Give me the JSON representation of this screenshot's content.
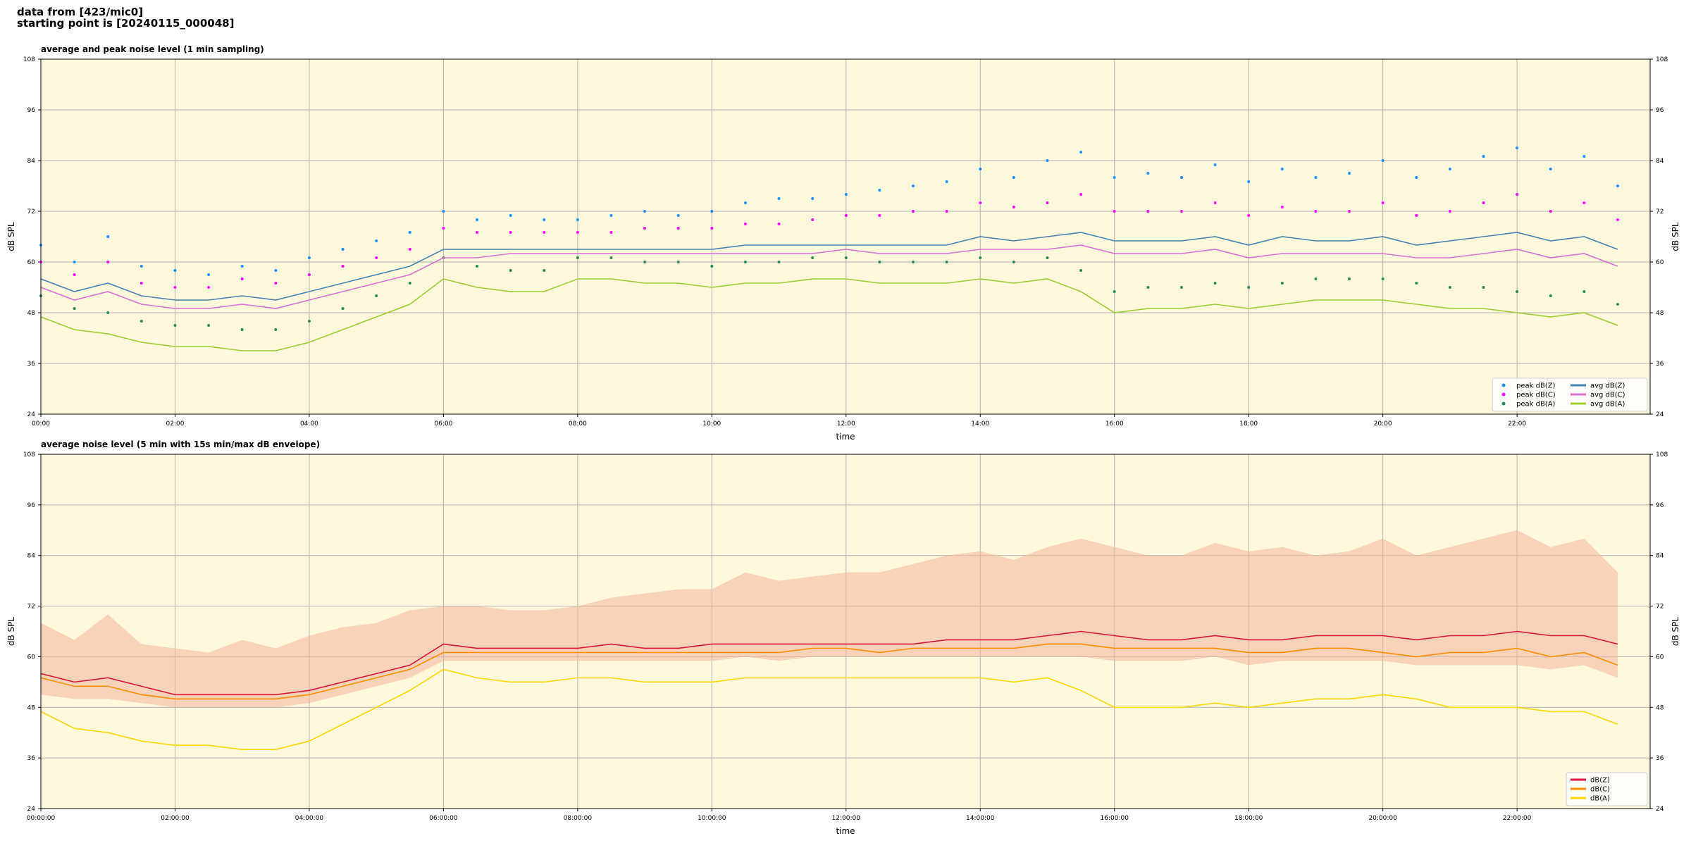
{
  "header": [
    "data from [423/mic0]",
    "starting point is [20240115_000048]"
  ],
  "chart_data": [
    {
      "type": "line",
      "title": "average and peak noise level (1 min sampling)",
      "xlabel": "time",
      "ylabel": "dB SPL",
      "background": "#fff8dc",
      "grid": true,
      "legend": "lower right",
      "legend_columns": 2,
      "xlim": [
        "00:00",
        "23:59"
      ],
      "xticks": [
        "00:00",
        "02:00",
        "04:00",
        "06:00",
        "08:00",
        "10:00",
        "12:00",
        "14:00",
        "16:00",
        "18:00",
        "20:00",
        "22:00"
      ],
      "ylim": [
        24,
        108
      ],
      "yticks": [
        24,
        36,
        48,
        60,
        72,
        84,
        96,
        108
      ],
      "x": [
        "00:00",
        "00:30",
        "01:00",
        "01:30",
        "02:00",
        "02:30",
        "03:00",
        "03:30",
        "04:00",
        "04:30",
        "05:00",
        "05:30",
        "06:00",
        "06:30",
        "07:00",
        "07:30",
        "08:00",
        "08:30",
        "09:00",
        "09:30",
        "10:00",
        "10:30",
        "11:00",
        "11:30",
        "12:00",
        "12:30",
        "13:00",
        "13:30",
        "14:00",
        "14:30",
        "15:00",
        "15:30",
        "16:00",
        "16:30",
        "17:00",
        "17:30",
        "18:00",
        "18:30",
        "19:00",
        "19:30",
        "20:00",
        "20:30",
        "21:00",
        "21:30",
        "22:00",
        "22:30",
        "23:00",
        "23:30"
      ],
      "series": [
        {
          "name": "peak dB(Z)",
          "type": "scatter",
          "color": "#1e90ff",
          "values": [
            64,
            60,
            66,
            59,
            58,
            57,
            59,
            58,
            61,
            63,
            65,
            67,
            72,
            70,
            71,
            70,
            70,
            71,
            72,
            71,
            72,
            74,
            75,
            75,
            76,
            77,
            78,
            79,
            82,
            80,
            84,
            86,
            80,
            81,
            80,
            83,
            79,
            82,
            80,
            81,
            84,
            80,
            82,
            85,
            87,
            82,
            85,
            78
          ]
        },
        {
          "name": "peak dB(C)",
          "type": "scatter",
          "color": "#ff00ff",
          "values": [
            60,
            57,
            60,
            55,
            54,
            54,
            56,
            55,
            57,
            59,
            61,
            63,
            68,
            67,
            67,
            67,
            67,
            67,
            68,
            68,
            68,
            69,
            69,
            70,
            71,
            71,
            72,
            72,
            74,
            73,
            74,
            76,
            72,
            72,
            72,
            74,
            71,
            73,
            72,
            72,
            74,
            71,
            72,
            74,
            76,
            72,
            74,
            70
          ]
        },
        {
          "name": "peak dB(A)",
          "type": "scatter",
          "color": "#2e8b57",
          "values": [
            52,
            49,
            48,
            46,
            45,
            45,
            44,
            44,
            46,
            49,
            52,
            55,
            61,
            59,
            58,
            58,
            61,
            61,
            60,
            60,
            59,
            60,
            60,
            61,
            61,
            60,
            60,
            60,
            61,
            60,
            61,
            58,
            53,
            54,
            54,
            55,
            54,
            55,
            56,
            56,
            56,
            55,
            54,
            54,
            53,
            52,
            53,
            50
          ]
        },
        {
          "name": "avg dB(Z)",
          "type": "line",
          "color": "#4682b4",
          "values": [
            56,
            53,
            55,
            52,
            51,
            51,
            52,
            51,
            53,
            55,
            57,
            59,
            63,
            63,
            63,
            63,
            63,
            63,
            63,
            63,
            63,
            64,
            64,
            64,
            64,
            64,
            64,
            64,
            66,
            65,
            66,
            67,
            65,
            65,
            65,
            66,
            64,
            66,
            65,
            65,
            66,
            64,
            65,
            66,
            67,
            65,
            66,
            63
          ]
        },
        {
          "name": "avg dB(C)",
          "type": "line",
          "color": "#da70d6",
          "values": [
            54,
            51,
            53,
            50,
            49,
            49,
            50,
            49,
            51,
            53,
            55,
            57,
            61,
            61,
            62,
            62,
            62,
            62,
            62,
            62,
            62,
            62,
            62,
            62,
            63,
            62,
            62,
            62,
            63,
            63,
            63,
            64,
            62,
            62,
            62,
            63,
            61,
            62,
            62,
            62,
            62,
            61,
            61,
            62,
            63,
            61,
            62,
            59
          ]
        },
        {
          "name": "avg dB(A)",
          "type": "line",
          "color": "#9acd32",
          "values": [
            47,
            44,
            43,
            41,
            40,
            40,
            39,
            39,
            41,
            44,
            47,
            50,
            56,
            54,
            53,
            53,
            56,
            56,
            55,
            55,
            54,
            55,
            55,
            56,
            56,
            55,
            55,
            55,
            56,
            55,
            56,
            53,
            48,
            49,
            49,
            50,
            49,
            50,
            51,
            51,
            51,
            50,
            49,
            49,
            48,
            47,
            48,
            45
          ]
        }
      ]
    },
    {
      "type": "line",
      "title": "average noise level (5 min with 15s min/max dB envelope)",
      "xlabel": "time",
      "ylabel": "dB SPL",
      "background": "#fff8dc",
      "grid": true,
      "legend": "lower right",
      "legend_columns": 1,
      "xlim": [
        "00:00:00",
        "23:59:00"
      ],
      "xticks": [
        "00:00:00",
        "02:00:00",
        "04:00:00",
        "06:00:00",
        "08:00:00",
        "10:00:00",
        "12:00:00",
        "14:00:00",
        "16:00:00",
        "18:00:00",
        "20:00:00",
        "22:00:00"
      ],
      "ylim": [
        24,
        108
      ],
      "yticks": [
        24,
        36,
        48,
        60,
        72,
        84,
        96,
        108
      ],
      "x": [
        "00:00:00",
        "00:30:00",
        "01:00:00",
        "01:30:00",
        "02:00:00",
        "02:30:00",
        "03:00:00",
        "03:30:00",
        "04:00:00",
        "04:30:00",
        "05:00:00",
        "05:30:00",
        "06:00:00",
        "06:30:00",
        "07:00:00",
        "07:30:00",
        "08:00:00",
        "08:30:00",
        "09:00:00",
        "09:30:00",
        "10:00:00",
        "10:30:00",
        "11:00:00",
        "11:30:00",
        "12:00:00",
        "12:30:00",
        "13:00:00",
        "13:30:00",
        "14:00:00",
        "14:30:00",
        "15:00:00",
        "15:30:00",
        "16:00:00",
        "16:30:00",
        "17:00:00",
        "17:30:00",
        "18:00:00",
        "18:30:00",
        "19:00:00",
        "19:30:00",
        "20:00:00",
        "20:30:00",
        "21:00:00",
        "21:30:00",
        "22:00:00",
        "22:30:00",
        "23:00:00",
        "23:30:00"
      ],
      "envelope": {
        "color": "#f4b49c",
        "low": [
          51,
          50,
          50,
          49,
          48,
          48,
          48,
          48,
          49,
          51,
          53,
          55,
          59,
          59,
          59,
          59,
          59,
          59,
          59,
          59,
          59,
          60,
          59,
          60,
          60,
          60,
          60,
          60,
          60,
          60,
          60,
          60,
          59,
          59,
          59,
          60,
          58,
          59,
          59,
          59,
          59,
          58,
          58,
          58,
          58,
          57,
          58,
          55
        ],
        "high": [
          68,
          64,
          70,
          63,
          62,
          61,
          64,
          62,
          65,
          67,
          68,
          71,
          72,
          72,
          71,
          71,
          72,
          74,
          75,
          76,
          76,
          80,
          78,
          79,
          80,
          80,
          82,
          84,
          85,
          83,
          86,
          88,
          86,
          84,
          84,
          87,
          85,
          86,
          84,
          85,
          88,
          84,
          86,
          88,
          90,
          86,
          88,
          80
        ]
      },
      "series": [
        {
          "name": "dB(Z)",
          "type": "line",
          "color": "#dc143c",
          "values": [
            56,
            54,
            55,
            53,
            51,
            51,
            51,
            51,
            52,
            54,
            56,
            58,
            63,
            62,
            62,
            62,
            62,
            63,
            62,
            62,
            63,
            63,
            63,
            63,
            63,
            63,
            63,
            64,
            64,
            64,
            65,
            66,
            65,
            64,
            64,
            65,
            64,
            64,
            65,
            65,
            65,
            64,
            65,
            65,
            66,
            65,
            65,
            63
          ]
        },
        {
          "name": "dB(C)",
          "type": "line",
          "color": "#ff8c00",
          "values": [
            55,
            53,
            53,
            51,
            50,
            50,
            50,
            50,
            51,
            53,
            55,
            57,
            61,
            61,
            61,
            61,
            61,
            61,
            61,
            61,
            61,
            61,
            61,
            62,
            62,
            61,
            62,
            62,
            62,
            62,
            63,
            63,
            62,
            62,
            62,
            62,
            61,
            61,
            62,
            62,
            61,
            60,
            61,
            61,
            62,
            60,
            61,
            58
          ]
        },
        {
          "name": "dB(A)",
          "type": "line",
          "color": "#ffd700",
          "values": [
            47,
            43,
            42,
            40,
            39,
            39,
            38,
            38,
            40,
            44,
            48,
            52,
            57,
            55,
            54,
            54,
            55,
            55,
            54,
            54,
            54,
            55,
            55,
            55,
            55,
            55,
            55,
            55,
            55,
            54,
            55,
            52,
            48,
            48,
            48,
            49,
            48,
            49,
            50,
            50,
            51,
            50,
            48,
            48,
            48,
            47,
            47,
            44
          ]
        }
      ]
    }
  ]
}
